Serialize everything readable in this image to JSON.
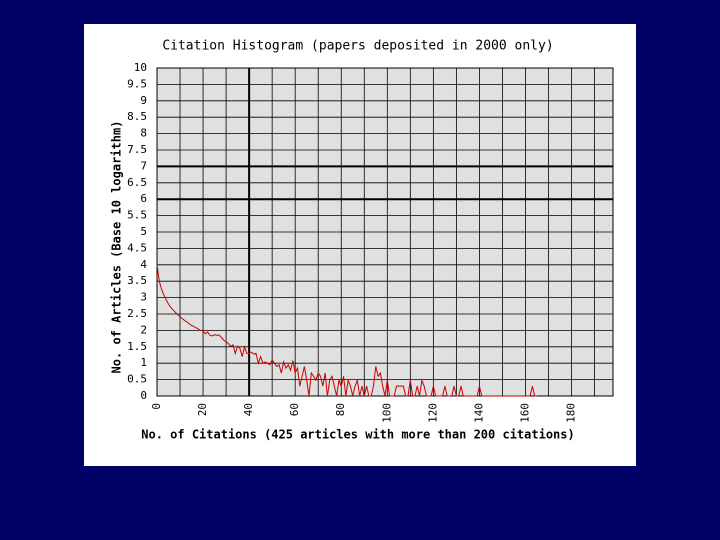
{
  "chart_data": {
    "type": "line",
    "title": "Citation Histogram (papers deposited in 2000 only)",
    "x_label": "No. of Citations (425 articles with more than 200 citations)",
    "y_label": "No. of Articles (Base 10 logarithm)",
    "xlim": [
      0,
      198
    ],
    "ylim": [
      0,
      10
    ],
    "xticks": [
      0,
      20,
      40,
      60,
      80,
      100,
      120,
      140,
      160,
      180
    ],
    "yticks": [
      0,
      0.5,
      1,
      1.5,
      2,
      2.5,
      3,
      3.5,
      4,
      4.5,
      5,
      5.5,
      6,
      6.5,
      7,
      7.5,
      8,
      8.5,
      9,
      9.5,
      10
    ],
    "x_grid": [
      0,
      10,
      20,
      30,
      40,
      50,
      60,
      70,
      80,
      90,
      100,
      110,
      120,
      130,
      140,
      150,
      160,
      170,
      180,
      190
    ],
    "emphasized_grid": {
      "x": [
        40
      ],
      "y": [
        6,
        7
      ]
    },
    "grid": true,
    "series": [
      {
        "color": "#cc0000",
        "x": [
          0,
          1,
          2,
          3,
          4,
          5,
          6,
          7,
          8,
          9,
          10,
          11,
          12,
          13,
          14,
          15,
          16,
          17,
          18,
          19,
          20,
          21,
          22,
          23,
          24,
          25,
          26,
          27,
          28,
          29,
          30,
          31,
          32,
          33,
          34,
          35,
          36,
          37,
          38,
          39,
          40,
          41,
          42,
          43,
          44,
          45,
          46,
          47,
          48,
          49,
          50,
          51,
          52,
          53,
          54,
          55,
          56,
          57,
          58,
          59,
          60,
          61,
          62,
          63,
          64,
          65,
          66,
          67,
          68,
          69,
          70,
          71,
          72,
          73,
          74,
          75,
          76,
          77,
          78,
          79,
          80,
          81,
          82,
          83,
          84,
          85,
          86,
          87,
          88,
          89,
          90,
          91,
          92,
          93,
          94,
          95,
          96,
          97,
          98,
          99,
          100,
          101,
          102,
          103,
          104,
          105,
          106,
          107,
          108,
          109,
          110,
          111,
          112,
          113,
          114,
          115,
          116,
          117,
          118,
          119,
          120,
          121,
          122,
          123,
          124,
          125,
          126,
          127,
          128,
          129,
          130,
          131,
          132,
          133,
          134,
          135,
          136,
          137,
          138,
          139,
          140,
          141,
          142,
          143,
          144,
          145,
          146,
          147,
          148,
          149,
          150,
          151,
          152,
          153,
          154,
          155,
          156,
          157,
          158,
          159,
          160,
          161,
          162,
          163,
          164,
          165
        ],
        "values": [
          4.0,
          3.5,
          3.25,
          3.08,
          2.93,
          2.8,
          2.7,
          2.62,
          2.55,
          2.48,
          2.42,
          2.36,
          2.3,
          2.26,
          2.2,
          2.15,
          2.12,
          2.08,
          2.04,
          2.0,
          1.98,
          1.9,
          1.95,
          1.85,
          1.83,
          1.87,
          1.85,
          1.86,
          1.78,
          1.7,
          1.65,
          1.6,
          1.51,
          1.56,
          1.3,
          1.52,
          1.45,
          1.2,
          1.5,
          1.3,
          1.3,
          1.34,
          1.28,
          1.3,
          1.0,
          1.2,
          1.0,
          1.04,
          1.0,
          0.95,
          1.1,
          1.0,
          0.9,
          0.95,
          0.7,
          1.04,
          0.85,
          0.95,
          0.78,
          1.08,
          0.7,
          0.85,
          0.3,
          0.6,
          0.9,
          0.48,
          0,
          0.7,
          0.6,
          0.48,
          0.7,
          0.6,
          0.3,
          0.7,
          0,
          0.48,
          0.6,
          0.3,
          0,
          0.48,
          0.3,
          0.6,
          0,
          0.48,
          0.3,
          0,
          0.3,
          0.48,
          0,
          0.3,
          0,
          0.3,
          0,
          0,
          0.3,
          0.9,
          0.6,
          0.7,
          0.3,
          0,
          0.48,
          0,
          0,
          0,
          0.3,
          0.3,
          0.3,
          0.3,
          0,
          0,
          0.48,
          0,
          0,
          0.3,
          0,
          0.48,
          0.3,
          0,
          0,
          0,
          0.3,
          0,
          0,
          0,
          0,
          0.3,
          0,
          0,
          0,
          0.3,
          0,
          0,
          0.3,
          0,
          0,
          0,
          0,
          0,
          0,
          0,
          0.3,
          0,
          0,
          0,
          0,
          0,
          0,
          0,
          0,
          0,
          0,
          0,
          0,
          0,
          0,
          0,
          0,
          0,
          0,
          0,
          0,
          0,
          0,
          0.3,
          0,
          0
        ]
      }
    ]
  }
}
